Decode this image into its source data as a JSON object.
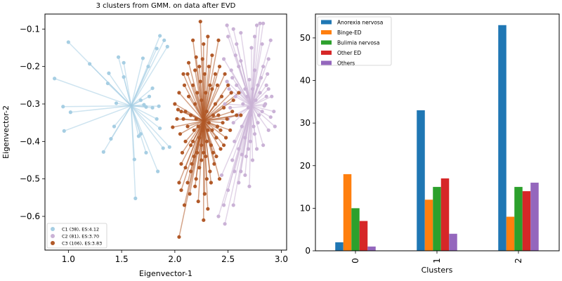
{
  "chart_data": [
    {
      "type": "scatter",
      "title": "3 clusters from GMM. on data after EVD",
      "xlabel": "Eigenvector-1",
      "ylabel": "Eigenvector-2",
      "xlim": [
        0.78,
        3.05
      ],
      "ylim": [
        -0.69,
        -0.06
      ],
      "x_ticks": [
        1.0,
        1.5,
        2.0,
        2.5,
        3.0
      ],
      "x_tick_labels": [
        "1.0",
        "1.5",
        "2.0",
        "2.5",
        "3.0"
      ],
      "y_ticks": [
        -0.1,
        -0.2,
        -0.3,
        -0.4,
        -0.5,
        -0.6
      ],
      "y_tick_labels": [
        "−0.1",
        "−0.2",
        "−0.3",
        "−0.4",
        "−0.5",
        "−0.6"
      ],
      "grid": false,
      "legend_position": "bottom-left",
      "legend": [
        "C1 (38), ES:4.12",
        "C2 (81), ES:3.70",
        "C3 (106), ES:3.83"
      ],
      "series": [
        {
          "name": "C1 (38), ES:4.12",
          "color": "#a6cee3",
          "centroid": [
            1.59,
            -0.305
          ],
          "points": [
            [
              1.0,
              -0.135
            ],
            [
              0.87,
              -0.232
            ],
            [
              0.95,
              -0.307
            ],
            [
              1.02,
              -0.322
            ],
            [
              0.96,
              -0.372
            ],
            [
              1.2,
              -0.193
            ],
            [
              1.38,
              -0.218
            ],
            [
              1.37,
              -0.245
            ],
            [
              1.47,
              -0.175
            ],
            [
              1.52,
              -0.19
            ],
            [
              1.52,
              -0.228
            ],
            [
              1.45,
              -0.298
            ],
            [
              1.33,
              -0.428
            ],
            [
              1.4,
              -0.393
            ],
            [
              1.43,
              -0.36
            ],
            [
              1.63,
              -0.552
            ],
            [
              1.62,
              -0.448
            ],
            [
              1.66,
              -0.386
            ],
            [
              1.73,
              -0.43
            ],
            [
              1.84,
              -0.48
            ],
            [
              1.68,
              -0.38
            ],
            [
              1.7,
              -0.178
            ],
            [
              1.75,
              -0.2
            ],
            [
              1.83,
              -0.152
            ],
            [
              1.86,
              -0.118
            ],
            [
              1.9,
              -0.13
            ],
            [
              1.93,
              -0.147
            ],
            [
              1.79,
              -0.258
            ],
            [
              1.76,
              -0.28
            ],
            [
              1.71,
              -0.302
            ],
            [
              1.68,
              -0.29
            ],
            [
              1.73,
              -0.308
            ],
            [
              1.79,
              -0.31
            ],
            [
              1.85,
              -0.306
            ],
            [
              1.83,
              -0.34
            ],
            [
              1.86,
              -0.365
            ],
            [
              1.95,
              -0.415
            ],
            [
              1.89,
              -0.418
            ]
          ]
        },
        {
          "name": "C2 (81), ES:3.70",
          "color": "#cab2d6",
          "centroid": [
            2.72,
            -0.305
          ],
          "points": [
            [
              2.44,
              -0.49
            ],
            [
              2.54,
              -0.45
            ],
            [
              2.56,
              -0.48
            ],
            [
              2.5,
              -0.53
            ],
            [
              2.46,
              -0.57
            ],
            [
              2.41,
              -0.6
            ],
            [
              2.47,
              -0.62
            ],
            [
              2.55,
              -0.57
            ],
            [
              2.6,
              -0.51
            ],
            [
              2.62,
              -0.48
            ],
            [
              2.66,
              -0.49
            ],
            [
              2.7,
              -0.52
            ],
            [
              2.63,
              -0.435
            ],
            [
              2.69,
              -0.42
            ],
            [
              2.73,
              -0.45
            ],
            [
              2.77,
              -0.42
            ],
            [
              2.83,
              -0.41
            ],
            [
              2.88,
              -0.37
            ],
            [
              2.94,
              -0.36
            ],
            [
              2.9,
              -0.335
            ],
            [
              2.85,
              -0.3
            ],
            [
              2.91,
              -0.28
            ],
            [
              2.93,
              -0.32
            ],
            [
              2.79,
              -0.33
            ],
            [
              2.84,
              -0.305
            ],
            [
              2.8,
              -0.27
            ],
            [
              2.86,
              -0.25
            ],
            [
              2.83,
              -0.2
            ],
            [
              2.87,
              -0.22
            ],
            [
              2.9,
              -0.13
            ],
            [
              2.88,
              -0.18
            ],
            [
              2.82,
              -0.14
            ],
            [
              2.8,
              -0.085
            ],
            [
              2.83,
              -0.085
            ],
            [
              2.77,
              -0.09
            ],
            [
              2.75,
              -0.12
            ],
            [
              2.72,
              -0.15
            ],
            [
              2.75,
              -0.21
            ],
            [
              2.7,
              -0.235
            ],
            [
              2.66,
              -0.26
            ],
            [
              2.62,
              -0.185
            ],
            [
              2.6,
              -0.2
            ],
            [
              2.57,
              -0.17
            ],
            [
              2.58,
              -0.14
            ],
            [
              2.62,
              -0.11
            ],
            [
              2.55,
              -0.1
            ],
            [
              2.49,
              -0.09
            ],
            [
              2.5,
              -0.12
            ],
            [
              2.46,
              -0.18
            ],
            [
              2.54,
              -0.23
            ],
            [
              2.51,
              -0.26
            ],
            [
              2.57,
              -0.28
            ],
            [
              2.52,
              -0.31
            ],
            [
              2.55,
              -0.35
            ],
            [
              2.59,
              -0.33
            ],
            [
              2.63,
              -0.36
            ],
            [
              2.66,
              -0.39
            ],
            [
              2.69,
              -0.31
            ],
            [
              2.71,
              -0.33
            ],
            [
              2.74,
              -0.36
            ],
            [
              2.76,
              -0.29
            ],
            [
              2.78,
              -0.25
            ],
            [
              2.81,
              -0.23
            ],
            [
              2.73,
              -0.26
            ],
            [
              2.68,
              -0.28
            ],
            [
              2.64,
              -0.3
            ],
            [
              2.61,
              -0.27
            ],
            [
              2.58,
              -0.25
            ],
            [
              2.53,
              -0.21
            ],
            [
              2.49,
              -0.24
            ],
            [
              2.47,
              -0.3
            ],
            [
              2.5,
              -0.34
            ],
            [
              2.56,
              -0.4
            ],
            [
              2.6,
              -0.42
            ],
            [
              2.67,
              -0.44
            ],
            [
              2.71,
              -0.4
            ],
            [
              2.75,
              -0.38
            ],
            [
              2.78,
              -0.35
            ],
            [
              2.82,
              -0.32
            ],
            [
              2.86,
              -0.28
            ],
            [
              2.88,
              -0.26
            ]
          ]
        },
        {
          "name": "C3 (106), ES:3.83",
          "color": "#b15928",
          "centroid": [
            2.27,
            -0.345
          ],
          "points": [
            [
              2.24,
              -0.08
            ],
            [
              2.27,
              -0.14
            ],
            [
              2.17,
              -0.13
            ],
            [
              2.31,
              -0.12
            ],
            [
              2.41,
              -0.13
            ],
            [
              2.35,
              -0.17
            ],
            [
              2.2,
              -0.175
            ],
            [
              2.13,
              -0.19
            ],
            [
              2.08,
              -0.22
            ],
            [
              2.04,
              -0.27
            ],
            [
              2.0,
              -0.3
            ],
            [
              2.03,
              -0.315
            ],
            [
              2.06,
              -0.32
            ],
            [
              2.1,
              -0.32
            ],
            [
              2.15,
              -0.33
            ],
            [
              2.2,
              -0.34
            ],
            [
              1.98,
              -0.362
            ],
            [
              2.05,
              -0.38
            ],
            [
              2.1,
              -0.4
            ],
            [
              2.15,
              -0.41
            ],
            [
              2.07,
              -0.43
            ],
            [
              2.06,
              -0.46
            ],
            [
              2.1,
              -0.47
            ],
            [
              2.04,
              -0.51
            ],
            [
              2.06,
              -0.53
            ],
            [
              2.14,
              -0.54
            ],
            [
              2.09,
              -0.57
            ],
            [
              2.04,
              -0.655
            ],
            [
              2.27,
              -0.61
            ],
            [
              2.2,
              -0.5
            ],
            [
              2.29,
              -0.44
            ],
            [
              2.33,
              -0.48
            ],
            [
              2.37,
              -0.46
            ],
            [
              2.43,
              -0.42
            ],
            [
              2.46,
              -0.41
            ],
            [
              2.39,
              -0.39
            ],
            [
              2.35,
              -0.37
            ],
            [
              2.31,
              -0.37
            ],
            [
              2.36,
              -0.43
            ],
            [
              2.25,
              -0.45
            ],
            [
              2.3,
              -0.5
            ],
            [
              2.25,
              -0.41
            ],
            [
              2.18,
              -0.44
            ],
            [
              2.17,
              -0.4
            ],
            [
              2.23,
              -0.39
            ],
            [
              2.34,
              -0.41
            ],
            [
              2.4,
              -0.36
            ],
            [
              2.45,
              -0.35
            ],
            [
              2.49,
              -0.34
            ],
            [
              2.54,
              -0.32
            ],
            [
              2.58,
              -0.33
            ],
            [
              2.62,
              -0.33
            ],
            [
              2.52,
              -0.37
            ],
            [
              2.48,
              -0.39
            ],
            [
              2.43,
              -0.37
            ],
            [
              2.3,
              -0.32
            ],
            [
              2.38,
              -0.3
            ],
            [
              2.44,
              -0.28
            ],
            [
              2.5,
              -0.25
            ],
            [
              2.53,
              -0.27
            ],
            [
              2.47,
              -0.22
            ],
            [
              2.42,
              -0.2
            ],
            [
              2.38,
              -0.22
            ],
            [
              2.33,
              -0.25
            ],
            [
              2.29,
              -0.27
            ],
            [
              2.25,
              -0.29
            ],
            [
              2.21,
              -0.27
            ],
            [
              2.17,
              -0.25
            ],
            [
              2.12,
              -0.22
            ],
            [
              2.09,
              -0.25
            ],
            [
              2.13,
              -0.28
            ],
            [
              2.19,
              -0.3
            ],
            [
              2.24,
              -0.24
            ],
            [
              2.28,
              -0.22
            ],
            [
              2.32,
              -0.2
            ],
            [
              2.26,
              -0.18
            ],
            [
              2.19,
              -0.21
            ],
            [
              2.23,
              -0.2
            ],
            [
              2.35,
              -0.26
            ],
            [
              2.4,
              -0.25
            ],
            [
              2.46,
              -0.31
            ],
            [
              2.55,
              -0.29
            ],
            [
              2.6,
              -0.27
            ],
            [
              2.02,
              -0.34
            ],
            [
              2.08,
              -0.34
            ],
            [
              2.12,
              -0.36
            ],
            [
              2.18,
              -0.37
            ],
            [
              2.22,
              -0.36
            ],
            [
              2.26,
              -0.37
            ],
            [
              2.32,
              -0.35
            ],
            [
              2.36,
              -0.33
            ],
            [
              2.41,
              -0.33
            ],
            [
              2.15,
              -0.48
            ],
            [
              2.12,
              -0.51
            ],
            [
              2.19,
              -0.52
            ],
            [
              2.23,
              -0.47
            ],
            [
              2.28,
              -0.54
            ],
            [
              2.22,
              -0.56
            ],
            [
              2.3,
              -0.4
            ],
            [
              2.27,
              -0.43
            ],
            [
              2.21,
              -0.43
            ],
            [
              2.16,
              -0.46
            ],
            [
              2.39,
              -0.44
            ],
            [
              2.34,
              -0.51
            ],
            [
              2.42,
              -0.5
            ],
            [
              2.31,
              -0.58
            ]
          ]
        }
      ]
    },
    {
      "type": "bar",
      "title": "",
      "xlabel": "Clusters",
      "ylabel": "",
      "categories": [
        "0",
        "1",
        "2"
      ],
      "ylim": [
        0,
        55.6
      ],
      "y_ticks": [
        0,
        10,
        20,
        30,
        40,
        50
      ],
      "y_tick_labels": [
        "0",
        "10",
        "20",
        "30",
        "40",
        "50"
      ],
      "grid": false,
      "legend_position": "top-left",
      "series": [
        {
          "name": "Anorexia nervosa",
          "color": "#1f77b4",
          "values": [
            2,
            33,
            53
          ]
        },
        {
          "name": "Binge-ED",
          "color": "#ff7f0e",
          "values": [
            18,
            12,
            8
          ]
        },
        {
          "name": "Bulimia nervosa",
          "color": "#2ca02c",
          "values": [
            10,
            15,
            15
          ]
        },
        {
          "name": "Other ED",
          "color": "#d62728",
          "values": [
            7,
            17,
            14
          ]
        },
        {
          "name": "Others",
          "color": "#9467bd",
          "values": [
            1,
            4,
            16
          ]
        }
      ]
    }
  ]
}
